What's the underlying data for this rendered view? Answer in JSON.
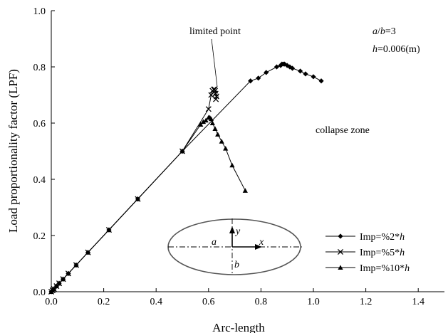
{
  "chart_data": {
    "type": "line",
    "title": "",
    "xlabel": "Arc-length",
    "ylabel": "Load proportionality factor (LPF)",
    "xlim": [
      0.0,
      1.5
    ],
    "ylim": [
      0.0,
      1.0
    ],
    "xticks": [
      0.0,
      0.2,
      0.4,
      0.6,
      0.8,
      1.0,
      1.2,
      1.4
    ],
    "yticks": [
      0.0,
      0.2,
      0.4,
      0.6,
      0.8,
      1.0
    ],
    "xtick_labels": [
      "0.0",
      "0.2",
      "0.4",
      "0.6",
      "0.8",
      "1.0",
      "1.2",
      "1.4"
    ],
    "ytick_labels": [
      "0.0",
      "0.2",
      "0.4",
      "0.6",
      "0.8",
      "1.0"
    ],
    "grid": false,
    "legend_position": "bottom-right",
    "annotations": {
      "limited_point": "limited point",
      "collapse_zone": "collapse zone",
      "ratio_label": "a/b=3",
      "thickness_label": "h=0.006(m)"
    },
    "inset_labels": {
      "a": "a",
      "b": "b",
      "x": "x",
      "y": "y"
    },
    "series": [
      {
        "name": "Imp=%2*h",
        "marker": "diamond",
        "x": [
          0.0,
          0.005,
          0.01,
          0.02,
          0.03,
          0.045,
          0.065,
          0.095,
          0.14,
          0.22,
          0.33,
          0.5,
          0.76,
          0.79,
          0.82,
          0.86,
          0.875,
          0.88,
          0.885,
          0.89,
          0.9,
          0.91,
          0.92,
          0.95,
          0.97,
          1.0,
          1.03
        ],
        "y": [
          0.0,
          0.005,
          0.01,
          0.02,
          0.03,
          0.045,
          0.065,
          0.095,
          0.14,
          0.22,
          0.33,
          0.5,
          0.75,
          0.76,
          0.78,
          0.8,
          0.805,
          0.81,
          0.81,
          0.81,
          0.805,
          0.8,
          0.795,
          0.785,
          0.775,
          0.765,
          0.75
        ]
      },
      {
        "name": "Imp=%5*h",
        "marker": "x",
        "x": [
          0.0,
          0.005,
          0.01,
          0.02,
          0.03,
          0.045,
          0.065,
          0.095,
          0.14,
          0.22,
          0.33,
          0.5,
          0.6,
          0.61,
          0.615,
          0.62,
          0.623,
          0.625,
          0.627,
          0.63,
          0.628
        ],
        "y": [
          0.0,
          0.005,
          0.01,
          0.02,
          0.03,
          0.045,
          0.065,
          0.095,
          0.14,
          0.22,
          0.33,
          0.5,
          0.65,
          0.7,
          0.715,
          0.72,
          0.72,
          0.715,
          0.705,
          0.695,
          0.685
        ]
      },
      {
        "name": "Imp=%10*h",
        "marker": "triangle",
        "x": [
          0.0,
          0.005,
          0.01,
          0.02,
          0.03,
          0.045,
          0.065,
          0.095,
          0.14,
          0.22,
          0.33,
          0.5,
          0.57,
          0.58,
          0.59,
          0.6,
          0.605,
          0.61,
          0.615,
          0.625,
          0.635,
          0.65,
          0.665,
          0.69,
          0.74
        ],
        "y": [
          0.0,
          0.005,
          0.01,
          0.02,
          0.03,
          0.045,
          0.065,
          0.095,
          0.14,
          0.22,
          0.33,
          0.5,
          0.595,
          0.605,
          0.61,
          0.62,
          0.62,
          0.615,
          0.6,
          0.58,
          0.56,
          0.535,
          0.51,
          0.45,
          0.36
        ]
      }
    ]
  }
}
